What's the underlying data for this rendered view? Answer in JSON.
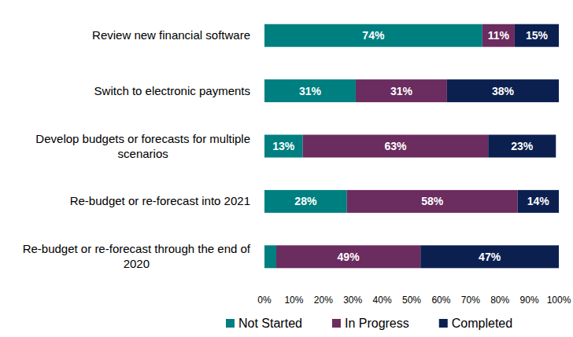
{
  "chart_data": {
    "type": "bar",
    "orientation": "horizontal",
    "stacked": true,
    "data_labels": true,
    "grid": false,
    "legend": "bottom",
    "categories": [
      "Review new financial software",
      "Switch to electronic payments",
      "Develop budgets or forecasts for multiple scenarios",
      "Re-budget or re-forecast into 2021",
      "Re-budget or re-forecast through the end of 2020"
    ],
    "series": [
      {
        "name": "Not Started",
        "color": "#007f80",
        "values": [
          74,
          31,
          13,
          28,
          4
        ],
        "value_labels": [
          "74%",
          "31%",
          "13%",
          "28%",
          null
        ]
      },
      {
        "name": "In Progress",
        "color": "#6b2c5f",
        "values": [
          11,
          31,
          63,
          58,
          49
        ],
        "value_labels": [
          "11%",
          "31%",
          "63%",
          "58%",
          "49%"
        ]
      },
      {
        "name": "Completed",
        "color": "#0c2050",
        "values": [
          15,
          38,
          23,
          14,
          47
        ],
        "value_labels": [
          "15%",
          "38%",
          "23%",
          "14%",
          "47%"
        ]
      }
    ],
    "xlim": [
      0,
      100
    ],
    "xticks": [
      {
        "value": 0,
        "label": "0%"
      },
      {
        "value": 10,
        "label": "10%"
      },
      {
        "value": 20,
        "label": "20%"
      },
      {
        "value": 30,
        "label": "30%"
      },
      {
        "value": 40,
        "label": "40%"
      },
      {
        "value": 50,
        "label": "50%"
      },
      {
        "value": 60,
        "label": "60%"
      },
      {
        "value": 70,
        "label": "70%"
      },
      {
        "value": 80,
        "label": "80%"
      },
      {
        "value": 90,
        "label": "90%"
      },
      {
        "value": 100,
        "label": "100%"
      }
    ]
  }
}
